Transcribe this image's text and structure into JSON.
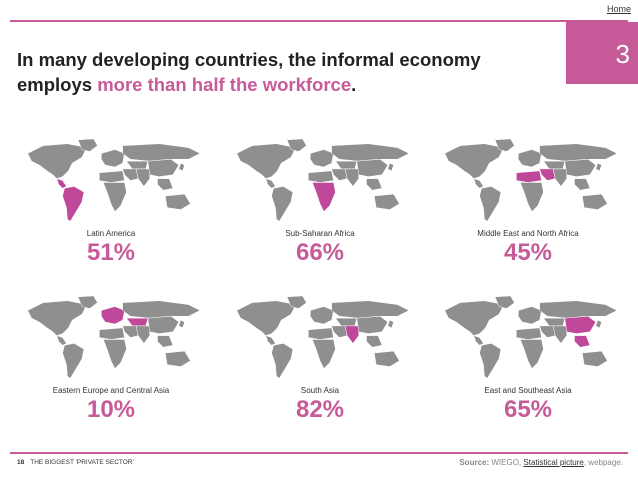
{
  "nav": {
    "home": "Home"
  },
  "page_number": "3",
  "headline": {
    "part1": "In many developing countries, the informal economy employs ",
    "accent": "more than half the workforce",
    "end": "."
  },
  "regions": [
    {
      "label": "Latin America",
      "value": "51%",
      "highlight": "latam"
    },
    {
      "label": "Sub-Saharan Africa",
      "value": "66%",
      "highlight": "ssa"
    },
    {
      "label": "Middle East and North Africa",
      "value": "45%",
      "highlight": "mena"
    },
    {
      "label": "Eastern Europe and Central Asia",
      "value": "10%",
      "highlight": "eeca"
    },
    {
      "label": "South Asia",
      "value": "82%",
      "highlight": "sa"
    },
    {
      "label": "East and Southeast Asia",
      "value": "65%",
      "highlight": "esa"
    }
  ],
  "footer": {
    "page": "18",
    "section": "THE BIGGEST 'PRIVATE SECTOR'",
    "source_label": "Source:",
    "source_org": "WIEGO,",
    "source_link": "Statistical picture",
    "source_end": ", webpage."
  },
  "colors": {
    "accent": "#c75b99",
    "map_gray": "#8f8f8f",
    "highlight": "#c0489a"
  }
}
